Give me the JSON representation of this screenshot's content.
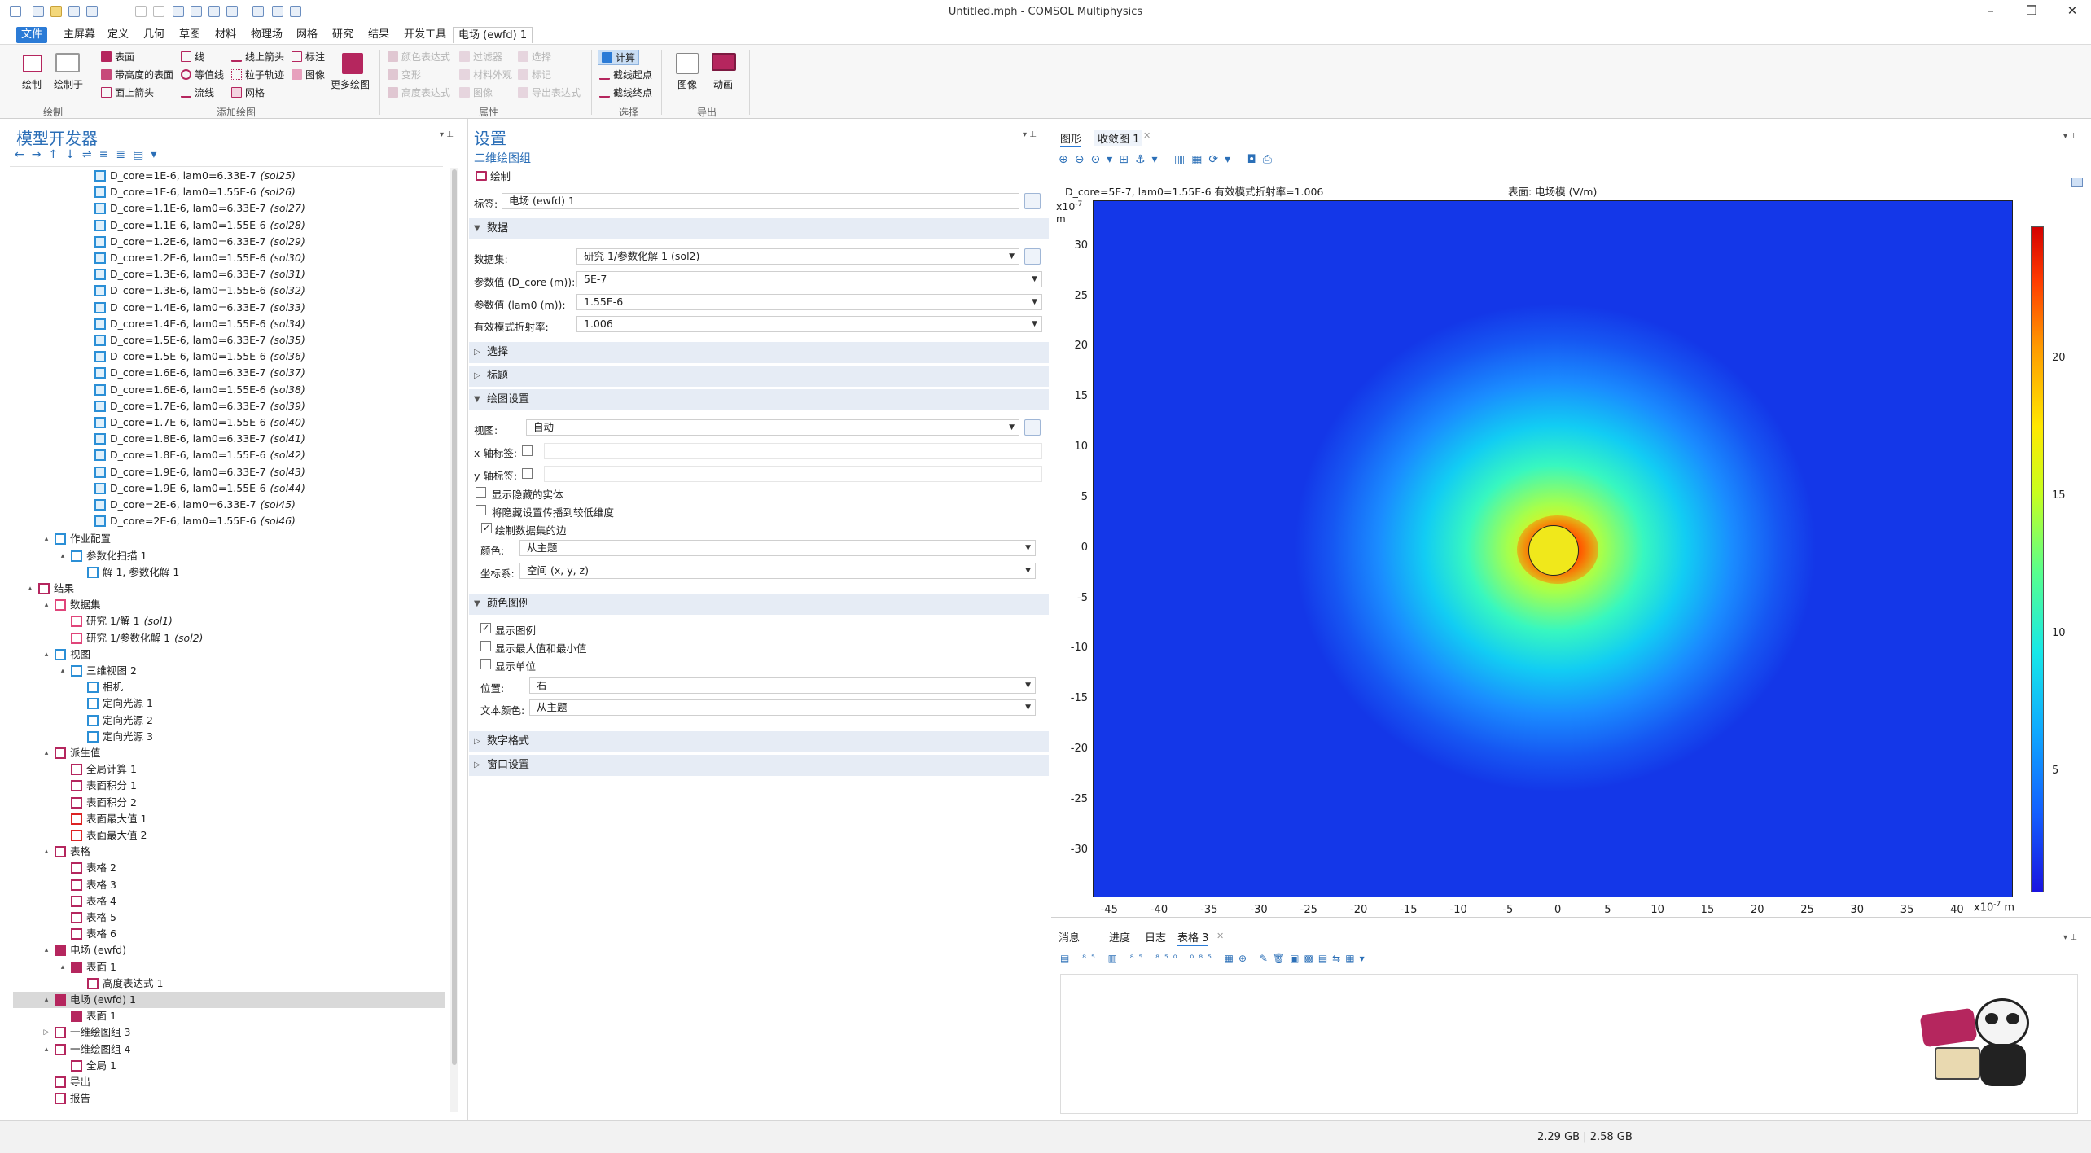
{
  "window": {
    "title": "Untitled.mph - COMSOL Multiphysics"
  },
  "menu": {
    "tabs": [
      "文件",
      "主屏幕",
      "定义",
      "几何",
      "草图",
      "材料",
      "物理场",
      "网格",
      "研究",
      "结果",
      "开发工具",
      "电场 (ewfd) 1"
    ]
  },
  "ribbon": {
    "plot": {
      "plot_label": "绘制",
      "plot_in_label": "绘制于",
      "group": "绘制"
    },
    "add": {
      "surface": "表面",
      "line": "线",
      "line_arrow": "线上箭头",
      "annotation": "标注",
      "height_surface": "带高度的表面",
      "contour": "等值线",
      "particle": "粒子轨迹",
      "image": "图像",
      "surface_arrow": "面上箭头",
      "streamline": "流线",
      "mesh": "网格",
      "more": "更多绘图",
      "group": "添加绘图"
    },
    "attr": {
      "color_expr": "颜色表达式",
      "filter": "过滤器",
      "select": "选择",
      "deform": "变形",
      "material_appear": "材料外观",
      "marker": "标记",
      "height_expr": "高度表达式",
      "image": "图像",
      "export_expr": "导出表达式",
      "group": "属性"
    },
    "select": {
      "compute": "计算",
      "start": "截线起点",
      "end": "截线终点",
      "group": "选择"
    },
    "export": {
      "image": "图像",
      "animation": "动画",
      "group": "导出"
    }
  },
  "model_builder": {
    "title": "模型开发器",
    "solutions": [
      {
        "text": "D_core=1E-6, lam0=6.33E-7",
        "tag": "(sol25)"
      },
      {
        "text": "D_core=1E-6, lam0=1.55E-6",
        "tag": "(sol26)"
      },
      {
        "text": "D_core=1.1E-6, lam0=6.33E-7",
        "tag": "(sol27)"
      },
      {
        "text": "D_core=1.1E-6, lam0=1.55E-6",
        "tag": "(sol28)"
      },
      {
        "text": "D_core=1.2E-6, lam0=6.33E-7",
        "tag": "(sol29)"
      },
      {
        "text": "D_core=1.2E-6, lam0=1.55E-6",
        "tag": "(sol30)"
      },
      {
        "text": "D_core=1.3E-6, lam0=6.33E-7",
        "tag": "(sol31)"
      },
      {
        "text": "D_core=1.3E-6, lam0=1.55E-6",
        "tag": "(sol32)"
      },
      {
        "text": "D_core=1.4E-6, lam0=6.33E-7",
        "tag": "(sol33)"
      },
      {
        "text": "D_core=1.4E-6, lam0=1.55E-6",
        "tag": "(sol34)"
      },
      {
        "text": "D_core=1.5E-6, lam0=6.33E-7",
        "tag": "(sol35)"
      },
      {
        "text": "D_core=1.5E-6, lam0=1.55E-6",
        "tag": "(sol36)"
      },
      {
        "text": "D_core=1.6E-6, lam0=6.33E-7",
        "tag": "(sol37)"
      },
      {
        "text": "D_core=1.6E-6, lam0=1.55E-6",
        "tag": "(sol38)"
      },
      {
        "text": "D_core=1.7E-6, lam0=6.33E-7",
        "tag": "(sol39)"
      },
      {
        "text": "D_core=1.7E-6, lam0=1.55E-6",
        "tag": "(sol40)"
      },
      {
        "text": "D_core=1.8E-6, lam0=6.33E-7",
        "tag": "(sol41)"
      },
      {
        "text": "D_core=1.8E-6, lam0=1.55E-6",
        "tag": "(sol42)"
      },
      {
        "text": "D_core=1.9E-6, lam0=6.33E-7",
        "tag": "(sol43)"
      },
      {
        "text": "D_core=1.9E-6, lam0=1.55E-6",
        "tag": "(sol44)"
      },
      {
        "text": "D_core=2E-6, lam0=6.33E-7",
        "tag": "(sol45)"
      },
      {
        "text": "D_core=2E-6, lam0=1.55E-6",
        "tag": "(sol46)"
      }
    ],
    "nodes": [
      {
        "text": "作业配置",
        "tag": ""
      },
      {
        "text": "参数化扫描 1",
        "tag": ""
      },
      {
        "text": "解 1, 参数化解 1",
        "tag": ""
      },
      {
        "text": "结果",
        "tag": ""
      },
      {
        "text": "数据集",
        "tag": ""
      },
      {
        "text": "研究 1/解 1",
        "tag": "(sol1)"
      },
      {
        "text": "研究 1/参数化解 1",
        "tag": "(sol2)"
      },
      {
        "text": "视图",
        "tag": ""
      },
      {
        "text": "三维视图 2",
        "tag": ""
      },
      {
        "text": "相机",
        "tag": ""
      },
      {
        "text": "定向光源 1",
        "tag": ""
      },
      {
        "text": "定向光源 2",
        "tag": ""
      },
      {
        "text": "定向光源 3",
        "tag": ""
      },
      {
        "text": "派生值",
        "tag": ""
      },
      {
        "text": "全局计算 1",
        "tag": ""
      },
      {
        "text": "表面积分 1",
        "tag": ""
      },
      {
        "text": "表面积分 2",
        "tag": ""
      },
      {
        "text": "表面最大值 1",
        "tag": ""
      },
      {
        "text": "表面最大值 2",
        "tag": ""
      },
      {
        "text": "表格",
        "tag": ""
      },
      {
        "text": "表格 2",
        "tag": ""
      },
      {
        "text": "表格 3",
        "tag": ""
      },
      {
        "text": "表格 4",
        "tag": ""
      },
      {
        "text": "表格 5",
        "tag": ""
      },
      {
        "text": "表格 6",
        "tag": ""
      },
      {
        "text": "电场 (ewfd)",
        "tag": ""
      },
      {
        "text": "表面 1",
        "tag": ""
      },
      {
        "text": "高度表达式 1",
        "tag": ""
      },
      {
        "text": "电场 (ewfd) 1",
        "tag": ""
      },
      {
        "text": "表面 1",
        "tag": ""
      },
      {
        "text": "一维绘图组 3",
        "tag": ""
      },
      {
        "text": "一维绘图组 4",
        "tag": ""
      },
      {
        "text": "全局 1",
        "tag": ""
      },
      {
        "text": "导出",
        "tag": ""
      },
      {
        "text": "报告",
        "tag": ""
      }
    ]
  },
  "settings": {
    "title": "设置",
    "subtitle": "二维绘图组",
    "plot_button": "绘制",
    "label_caption": "标签:",
    "label_value": "电场 (ewfd) 1",
    "data_section": "数据",
    "dataset_label": "数据集:",
    "dataset_value": "研究 1/参数化解 1 (sol2)",
    "param1_label": "参数值 (D_core (m)):",
    "param1_value": "5E-7",
    "param2_label": "参数值 (lam0 (m)):",
    "param2_value": "1.55E-6",
    "neff_label": "有效模式折射率:",
    "neff_value": "1.006",
    "selection_section": "选择",
    "title_section": "标题",
    "plot_settings_section": "绘图设置",
    "view_label": "视图:",
    "view_value": "自动",
    "xaxis_label": "x 轴标签:",
    "yaxis_label": "y 轴标签:",
    "show_hidden": "显示隐藏的实体",
    "propagate_hidden": "将隐藏设置传播到较低维度",
    "plot_dataset_edges": "绘制数据集的边",
    "color_label": "颜色:",
    "color_value": "从主题",
    "frame_label": "坐标系:",
    "frame_value": "空间 (x, y, z)",
    "legend_section": "颜色图例",
    "show_legend": "显示图例",
    "show_maxmin": "显示最大值和最小值",
    "show_units": "显示单位",
    "position_label": "位置:",
    "position_value": "右",
    "textcolor_label": "文本颜色:",
    "textcolor_value": "从主题",
    "number_format_section": "数字格式",
    "window_settings_section": "窗口设置"
  },
  "graphics": {
    "tab_graphics": "图形",
    "tab_convergence": "收敛图 1",
    "plot_title_left": "D_core=5E-7, lam0=1.55E-6 有效模式折射率=1.006",
    "plot_title_right": "表面: 电场模 (V/m)",
    "y_exponent": "x10",
    "y_exponent_power": "-7",
    "y_unit": "m",
    "x_exponent": "x10",
    "x_exponent_power": "-7",
    "x_unit": "m",
    "xticks": [
      "-45",
      "-40",
      "-35",
      "-30",
      "-25",
      "-20",
      "-15",
      "-10",
      "-5",
      "0",
      "5",
      "10",
      "15",
      "20",
      "25",
      "30",
      "35",
      "40"
    ],
    "yticks": [
      "30",
      "25",
      "20",
      "15",
      "10",
      "5",
      "0",
      "-5",
      "-10",
      "-15",
      "-20",
      "-25",
      "-30"
    ],
    "colorbar_ticks": [
      "20",
      "15",
      "10",
      "5"
    ]
  },
  "bottom": {
    "tabs": [
      "消息",
      "进度",
      "日志",
      "表格 3"
    ]
  },
  "status": {
    "memory": "2.29 GB | 2.58 GB"
  },
  "colors": {
    "accent": "#2b7bd6",
    "brand": "#b5265e",
    "section_bg": "#e6ecf5"
  }
}
